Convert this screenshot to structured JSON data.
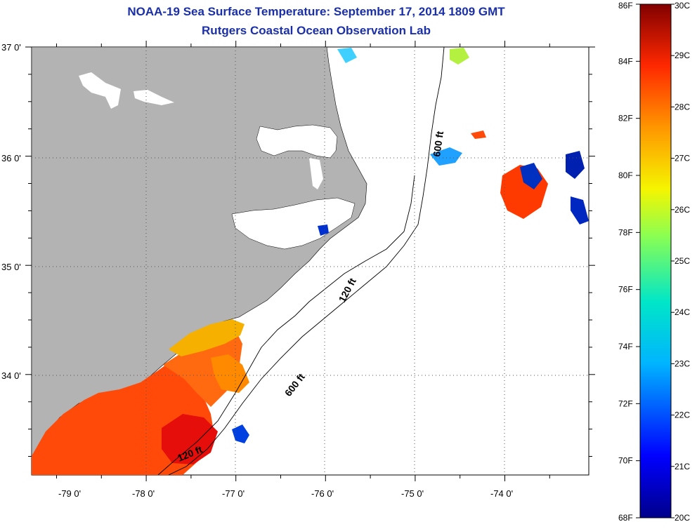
{
  "title": {
    "line1": "NOAA-19 Sea Surface Temperature:  September 17, 2014 1809 GMT",
    "line2": "Rutgers Coastal Ocean Observation Lab"
  },
  "map": {
    "lat_labels": [
      "37 0'",
      "36 0'",
      "35 0'",
      "34 0'"
    ],
    "lon_labels": [
      "-79 0'",
      "-78 0'",
      "-77 0'",
      "-76 0'",
      "-75 0'",
      "-74 0'"
    ],
    "depth_labels": [
      "600 ft",
      "120 ft",
      "600 ft",
      "120 ft"
    ],
    "colors": {
      "land": "#b3b3b3",
      "ocean_nodata": "#ffffff",
      "title": "#1a2fa8"
    }
  },
  "colorbar": {
    "fahrenheit": [
      "86F",
      "84F",
      "82F",
      "80F",
      "78F",
      "76F",
      "74F",
      "72F",
      "70F",
      "68F"
    ],
    "celsius": [
      "30C",
      "29C",
      "28C",
      "27C",
      "26C",
      "25C",
      "24C",
      "23C",
      "22C",
      "21C",
      "20C"
    ]
  }
}
